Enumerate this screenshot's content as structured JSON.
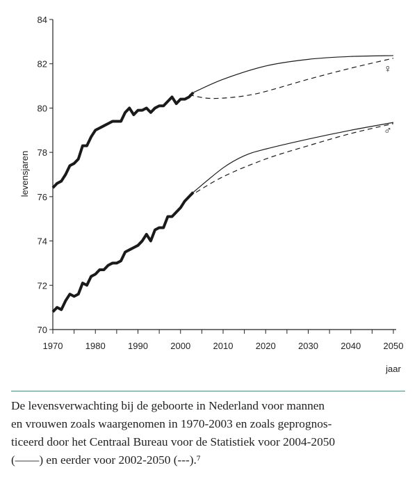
{
  "chart_data": {
    "type": "line",
    "xlabel": "jaar",
    "ylabel": "levensjaren",
    "xlim": [
      1970,
      2050
    ],
    "ylim": [
      70,
      84
    ],
    "xticks": [
      1970,
      1980,
      1990,
      2000,
      2010,
      2020,
      2030,
      2040,
      2050
    ],
    "yticks": [
      70,
      72,
      74,
      76,
      78,
      80,
      82,
      84
    ],
    "grid": false,
    "series": [
      {
        "name": "♀",
        "style": "observed",
        "x": [
          1970,
          1971,
          1972,
          1973,
          1974,
          1975,
          1976,
          1977,
          1978,
          1979,
          1980,
          1981,
          1982,
          1983,
          1984,
          1985,
          1986,
          1987,
          1988,
          1989,
          1990,
          1991,
          1992,
          1993,
          1994,
          1995,
          1996,
          1997,
          1998,
          1999,
          2000,
          2001,
          2002,
          2003
        ],
        "y": [
          76.4,
          76.6,
          76.7,
          77.0,
          77.4,
          77.5,
          77.7,
          78.3,
          78.3,
          78.7,
          79.0,
          79.1,
          79.2,
          79.3,
          79.4,
          79.4,
          79.4,
          79.8,
          80.0,
          79.7,
          79.9,
          79.9,
          80.0,
          79.8,
          80.0,
          80.1,
          80.1,
          80.3,
          80.5,
          80.2,
          80.4,
          80.4,
          80.5,
          80.7
        ]
      },
      {
        "style": "projection-2004-2050",
        "x": [
          2003,
          2010,
          2020,
          2030,
          2040,
          2050
        ],
        "y": [
          80.7,
          81.3,
          81.9,
          82.2,
          82.33,
          82.37
        ]
      },
      {
        "style": "projection-2002-2050",
        "x": [
          2002,
          2006,
          2010,
          2015,
          2020,
          2030,
          2040,
          2050
        ],
        "y": [
          80.6,
          80.45,
          80.45,
          80.55,
          80.75,
          81.3,
          81.8,
          82.25
        ]
      },
      {
        "name": "♂",
        "style": "observed",
        "x": [
          1970,
          1971,
          1972,
          1973,
          1974,
          1975,
          1976,
          1977,
          1978,
          1979,
          1980,
          1981,
          1982,
          1983,
          1984,
          1985,
          1986,
          1987,
          1988,
          1989,
          1990,
          1991,
          1992,
          1993,
          1994,
          1995,
          1996,
          1997,
          1998,
          1999,
          2000,
          2001,
          2002,
          2003
        ],
        "y": [
          70.8,
          71.0,
          70.9,
          71.3,
          71.6,
          71.5,
          71.6,
          72.1,
          72.0,
          72.4,
          72.5,
          72.7,
          72.7,
          72.9,
          73.0,
          73.0,
          73.1,
          73.5,
          73.6,
          73.7,
          73.8,
          74.0,
          74.3,
          74.0,
          74.5,
          74.6,
          74.6,
          75.1,
          75.1,
          75.3,
          75.5,
          75.8,
          76.0,
          76.2
        ]
      },
      {
        "style": "projection-2004-2050",
        "x": [
          2003,
          2010,
          2015,
          2020,
          2030,
          2040,
          2050
        ],
        "y": [
          76.2,
          77.3,
          77.85,
          78.15,
          78.6,
          79.0,
          79.35
        ]
      },
      {
        "style": "projection-2002-2050",
        "x": [
          2002,
          2010,
          2020,
          2030,
          2040,
          2050
        ],
        "y": [
          76.0,
          76.9,
          77.7,
          78.3,
          78.85,
          79.3
        ]
      }
    ],
    "annotations": [
      "♀",
      "♂"
    ],
    "colors": {
      "line": "#1a1a1a",
      "rule": "#2a9d7a"
    }
  },
  "caption": "De levensverwachting bij de geboorte in Nederland voor mannen\nen vrouwen zoals waargenomen in 1970-2003 en zoals geprognos-\nticeerd door het Centraal Bureau voor de Statistiek voor 2004-2050\n(——) en eerder voor 2002-2050 (---).⁷"
}
